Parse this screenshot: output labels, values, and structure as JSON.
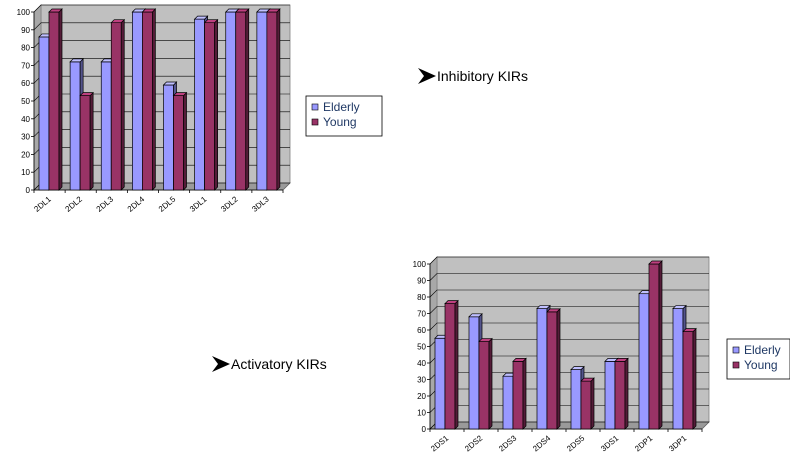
{
  "labels": {
    "inhibitory": "Inhibitory KIRs",
    "activatory": "Activatory KIRs"
  },
  "chart_data": [
    {
      "type": "bar",
      "categories": [
        "2DL1",
        "2DL2",
        "2DL3",
        "2DL4",
        "2DL5",
        "3DL1",
        "3DL2",
        "3DL3"
      ],
      "series": [
        {
          "name": "Elderly",
          "values": [
            86,
            72,
            72,
            100,
            59,
            96,
            100,
            100
          ]
        },
        {
          "name": "Young",
          "values": [
            100,
            53,
            94,
            100,
            53,
            94,
            100,
            100
          ]
        }
      ],
      "ylim": [
        0,
        100
      ],
      "yticks": [
        0,
        10,
        20,
        30,
        40,
        50,
        60,
        70,
        80,
        90,
        100
      ],
      "grid": true,
      "legend": "right",
      "colors": {
        "Elderly": "#9999ff",
        "Young": "#993366"
      }
    },
    {
      "type": "bar",
      "categories": [
        "2DS1",
        "2DS2",
        "2DS3",
        "2DS4",
        "2DS5",
        "3DS1",
        "2DP1",
        "3DP1"
      ],
      "series": [
        {
          "name": "Elderly",
          "values": [
            55,
            68,
            32,
            73,
            36,
            41,
            82,
            73
          ]
        },
        {
          "name": "Young",
          "values": [
            76,
            53,
            41,
            71,
            29,
            41,
            100,
            59
          ]
        }
      ],
      "ylim": [
        0,
        100
      ],
      "yticks": [
        0,
        10,
        20,
        30,
        40,
        50,
        60,
        70,
        80,
        90,
        100
      ],
      "grid": true,
      "legend": "right",
      "colors": {
        "Elderly": "#9999ff",
        "Young": "#993366"
      }
    }
  ]
}
